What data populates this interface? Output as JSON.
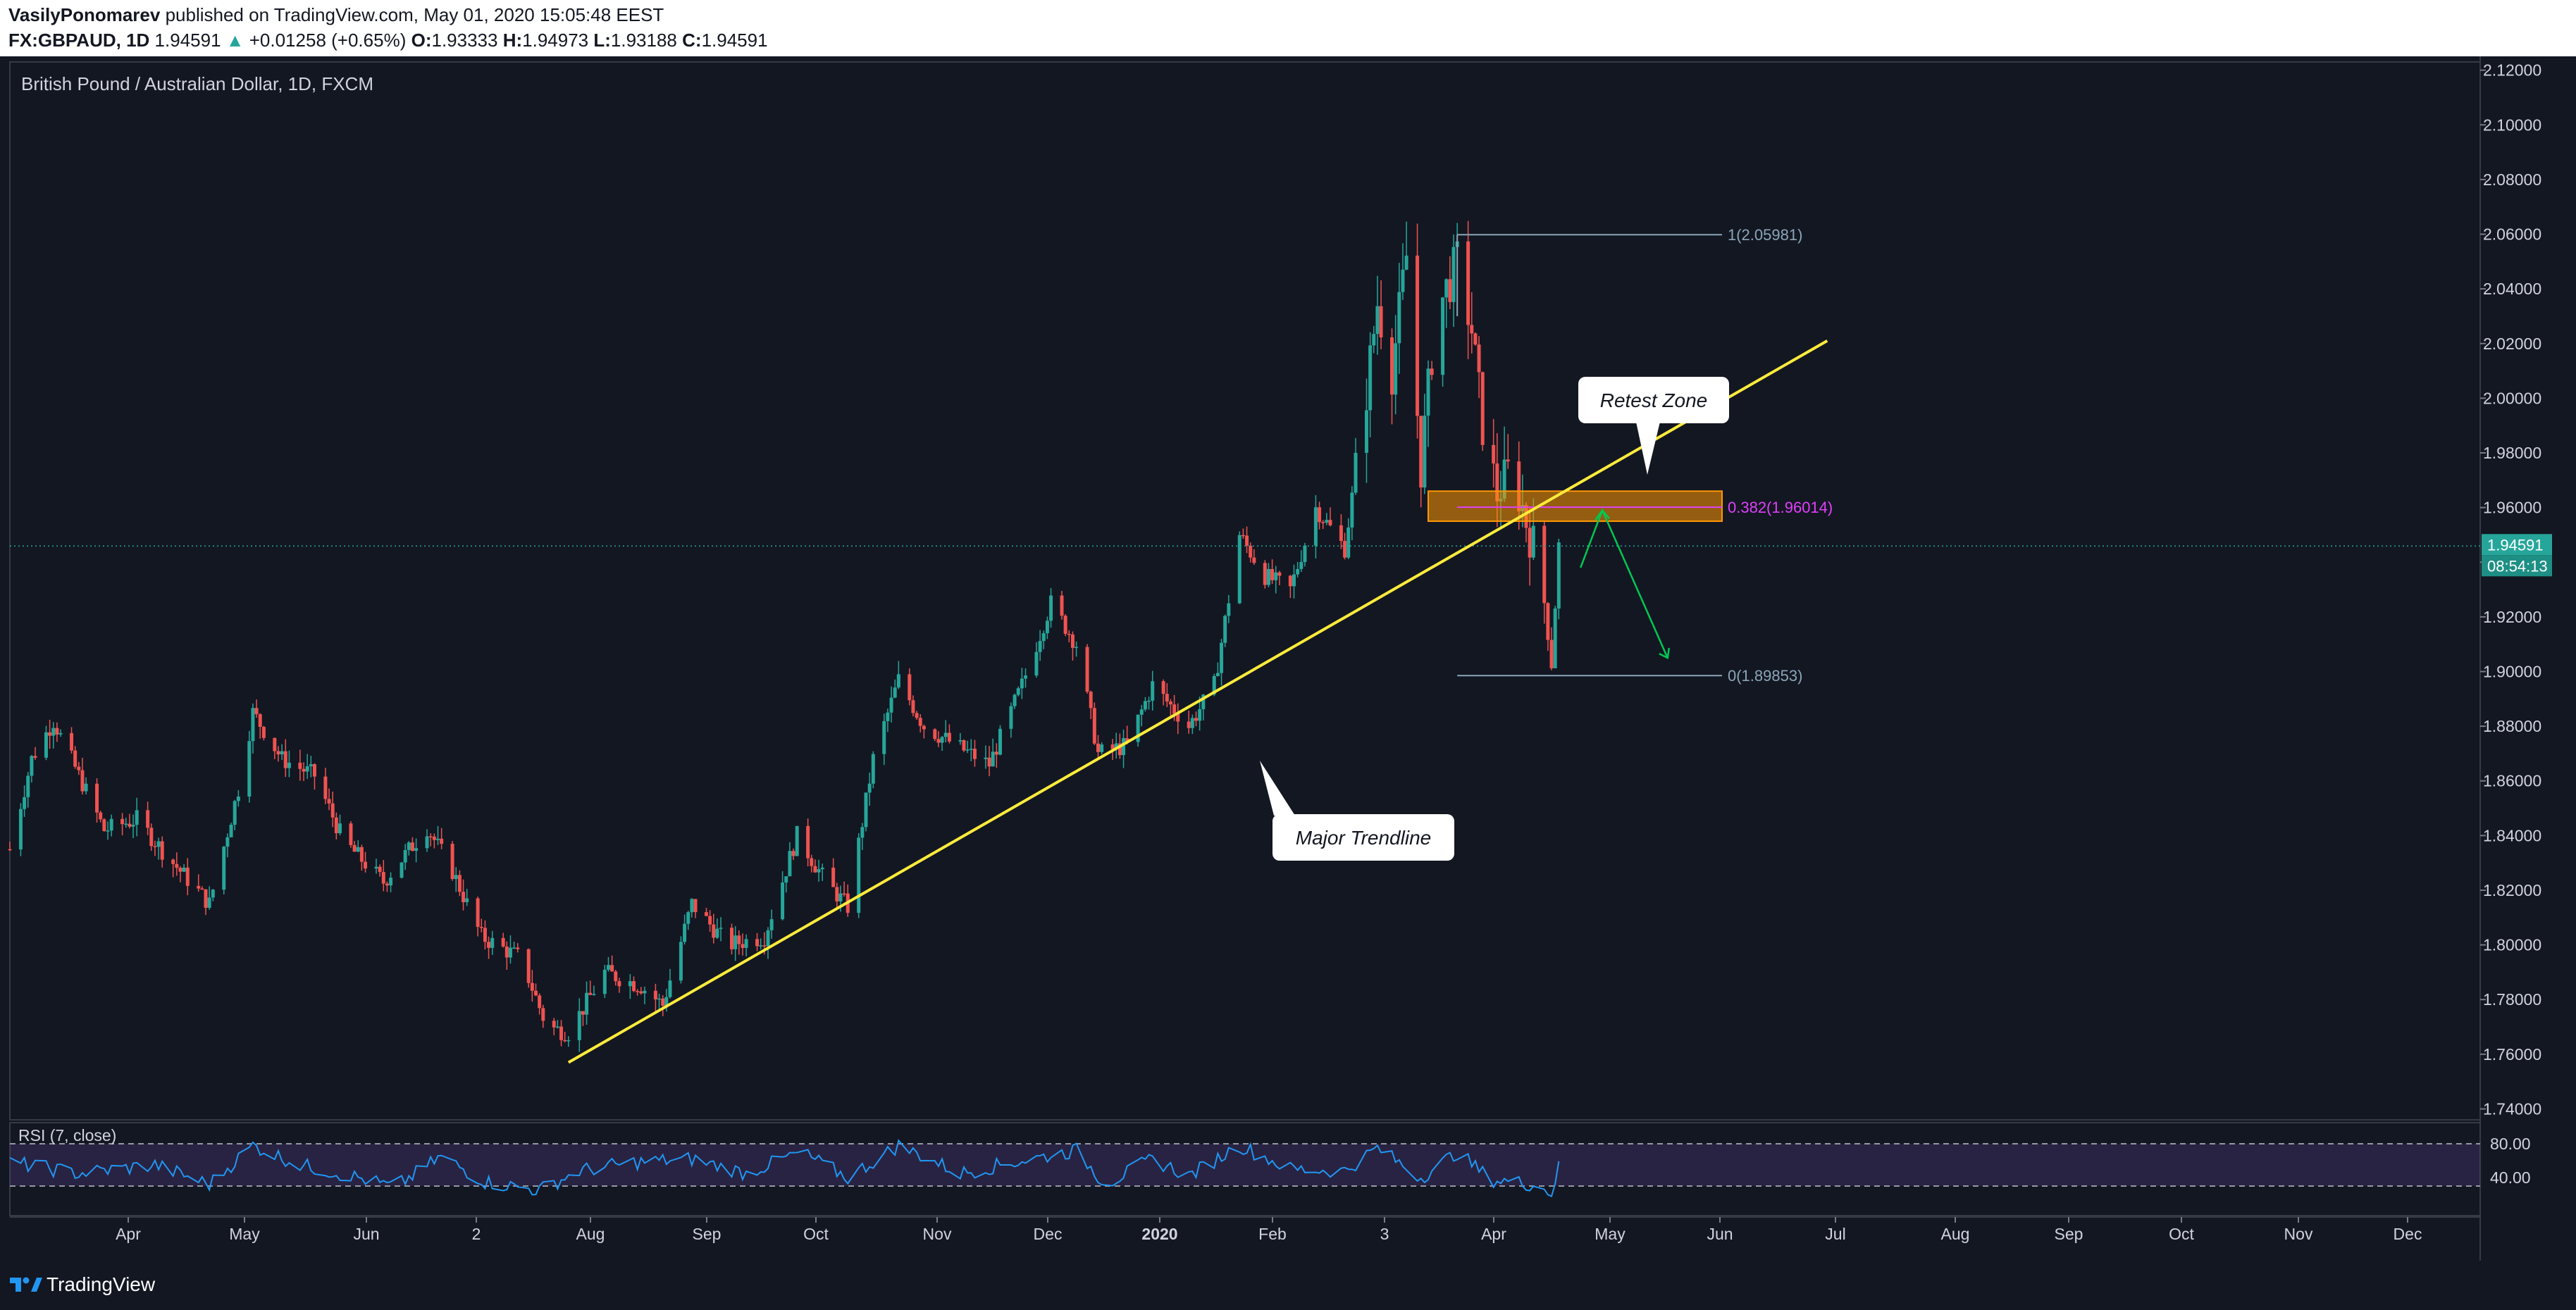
{
  "header": {
    "author": "VasilyPonomarev",
    "published": " published on TradingView.com, May 01, 2020 15:05:48 EEST",
    "symbol": "FX:GBPAUD, 1D",
    "price": "1.94591",
    "change": "+0.01258 (+0.65%)",
    "o_label": "O:",
    "o_val": "1.93333",
    "h_label": "H:",
    "h_val": "1.94973",
    "l_label": "L:",
    "l_val": "1.93188",
    "c_label": "C:",
    "c_val": "1.94591"
  },
  "footer": {
    "brand": "TradingView"
  },
  "colors": {
    "up": "#26a69a",
    "down": "#ef5350",
    "trendline": "#ffeb3b",
    "fib_zone": "#ff9800",
    "fib_label": "#e040fb",
    "rsi": "#2196f3",
    "background": "#131722"
  },
  "chart_data": {
    "type": "candlestick",
    "title": "British Pound / Australian Dollar, 1D, FXCM",
    "y_axis": {
      "ticks": [
        "2.12000",
        "2.10000",
        "2.08000",
        "2.06000",
        "2.04000",
        "2.02000",
        "2.00000",
        "1.98000",
        "1.96000",
        "1.94000",
        "1.92000",
        "1.90000",
        "1.88000",
        "1.86000",
        "1.84000",
        "1.82000",
        "1.80000",
        "1.78000",
        "1.76000",
        "1.74000"
      ],
      "range": [
        1.736,
        2.123
      ],
      "current_price": "1.94591",
      "countdown": "08:54:13"
    },
    "x_axis": {
      "ticks": [
        "Apr",
        "May",
        "Jun",
        "2",
        "Aug",
        "Sep",
        "Oct",
        "Nov",
        "Dec",
        "2020",
        "Feb",
        "3",
        "Apr",
        "May",
        "Jun",
        "Jul",
        "Aug",
        "Sep",
        "Oct",
        "Nov",
        "Dec"
      ],
      "start_date": "2019-03-01",
      "end_date": "2021-01-10"
    },
    "price_path": [
      [
        "2019-03-01",
        1.835
      ],
      [
        "2019-03-07",
        1.868
      ],
      [
        "2019-03-13",
        1.882
      ],
      [
        "2019-03-20",
        1.862
      ],
      [
        "2019-03-27",
        1.842
      ],
      [
        "2019-04-05",
        1.846
      ],
      [
        "2019-04-13",
        1.833
      ],
      [
        "2019-04-25",
        1.815
      ],
      [
        "2019-05-03",
        1.857
      ],
      [
        "2019-05-07",
        1.885
      ],
      [
        "2019-05-15",
        1.868
      ],
      [
        "2019-05-24",
        1.862
      ],
      [
        "2019-06-01",
        1.838
      ],
      [
        "2019-06-12",
        1.823
      ],
      [
        "2019-06-24",
        1.843
      ],
      [
        "2019-07-01",
        1.827
      ],
      [
        "2019-07-09",
        1.803
      ],
      [
        "2019-07-20",
        1.795
      ],
      [
        "2019-07-27",
        1.77
      ],
      [
        "2019-08-02",
        1.768
      ],
      [
        "2019-08-12",
        1.79
      ],
      [
        "2019-08-22",
        1.785
      ],
      [
        "2019-08-28",
        1.778
      ],
      [
        "2019-09-05",
        1.815
      ],
      [
        "2019-09-15",
        1.8
      ],
      [
        "2019-09-25",
        1.803
      ],
      [
        "2019-10-04",
        1.84
      ],
      [
        "2019-10-12",
        1.823
      ],
      [
        "2019-10-18",
        1.814
      ],
      [
        "2019-10-25",
        1.868
      ],
      [
        "2019-11-01",
        1.897
      ],
      [
        "2019-11-08",
        1.88
      ],
      [
        "2019-11-18",
        1.872
      ],
      [
        "2019-11-26",
        1.866
      ],
      [
        "2019-12-05",
        1.895
      ],
      [
        "2019-12-13",
        1.925
      ],
      [
        "2019-12-20",
        1.91
      ],
      [
        "2019-12-26",
        1.87
      ],
      [
        "2020-01-03",
        1.873
      ],
      [
        "2020-01-10",
        1.895
      ],
      [
        "2020-01-20",
        1.88
      ],
      [
        "2020-01-27",
        1.895
      ],
      [
        "2020-02-03",
        1.95
      ],
      [
        "2020-02-10",
        1.935
      ],
      [
        "2020-02-17",
        1.93
      ],
      [
        "2020-02-24",
        1.96
      ],
      [
        "2020-03-03",
        1.945
      ],
      [
        "2020-03-08",
        1.992
      ],
      [
        "2020-03-12",
        2.035
      ],
      [
        "2020-03-16",
        2.01
      ],
      [
        "2020-03-20",
        2.052
      ],
      [
        "2020-03-24",
        1.975
      ],
      [
        "2020-03-28",
        2.03
      ],
      [
        "2020-04-03",
        2.05
      ],
      [
        "2020-04-07",
        2.025
      ],
      [
        "2020-04-10",
        1.99
      ],
      [
        "2020-04-14",
        1.965
      ],
      [
        "2020-04-18",
        1.975
      ],
      [
        "2020-04-22",
        1.955
      ],
      [
        "2020-04-26",
        1.937
      ],
      [
        "2020-04-29",
        1.903
      ],
      [
        "2020-05-01",
        1.946
      ]
    ],
    "annotations": {
      "trendline": {
        "from": [
          "2019-08-02",
          1.757
        ],
        "to": [
          "2020-07-14",
          2.021
        ]
      },
      "retest_zone": {
        "label": "Retest Zone",
        "x0": "2020-03-26",
        "x1": "2020-06-15",
        "y0": 1.955,
        "y1": 1.966
      },
      "major_trendline_label": "Major Trendline",
      "fib_levels": [
        {
          "label": "1(2.05981)",
          "value": 2.05981,
          "x0": "2020-04-03",
          "x1": "2020-06-15",
          "color": "#8aa6b8"
        },
        {
          "label": "0.382(1.96014)",
          "value": 1.96014,
          "x0": "2020-04-03",
          "x1": "2020-06-15",
          "color": "#e040fb"
        },
        {
          "label": "0(1.89853)",
          "value": 1.89853,
          "x0": "2020-04-03",
          "x1": "2020-06-15",
          "color": "#8aa6b8"
        }
      ],
      "projection": [
        [
          "2020-05-07",
          1.938
        ],
        [
          "2020-05-13",
          1.959
        ],
        [
          "2020-05-31",
          1.905
        ]
      ]
    },
    "rsi": {
      "label": "RSI (7, close)",
      "ticks": [
        "80.00",
        "40.00"
      ],
      "upper": 80,
      "lower": 30,
      "path": [
        [
          "2019-03-01",
          58
        ],
        [
          "2019-03-20",
          45
        ],
        [
          "2019-04-10",
          55
        ],
        [
          "2019-04-25",
          32
        ],
        [
          "2019-05-07",
          78
        ],
        [
          "2019-05-20",
          55
        ],
        [
          "2019-06-05",
          40
        ],
        [
          "2019-06-15",
          28
        ],
        [
          "2019-06-28",
          65
        ],
        [
          "2019-07-10",
          35
        ],
        [
          "2019-07-25",
          25
        ],
        [
          "2019-08-05",
          48
        ],
        [
          "2019-08-20",
          58
        ],
        [
          "2019-09-05",
          62
        ],
        [
          "2019-09-20",
          45
        ],
        [
          "2019-10-05",
          70
        ],
        [
          "2019-10-18",
          40
        ],
        [
          "2019-11-01",
          78
        ],
        [
          "2019-11-18",
          45
        ],
        [
          "2019-12-05",
          60
        ],
        [
          "2019-12-20",
          72
        ],
        [
          "2019-12-28",
          32
        ],
        [
          "2020-01-10",
          62
        ],
        [
          "2020-01-20",
          42
        ],
        [
          "2020-02-03",
          78
        ],
        [
          "2020-02-17",
          50
        ],
        [
          "2020-03-03",
          48
        ],
        [
          "2020-03-12",
          75
        ],
        [
          "2020-03-24",
          40
        ],
        [
          "2020-04-03",
          70
        ],
        [
          "2020-04-12",
          38
        ],
        [
          "2020-04-24",
          32
        ],
        [
          "2020-04-29",
          22
        ],
        [
          "2020-05-01",
          52
        ]
      ]
    }
  }
}
